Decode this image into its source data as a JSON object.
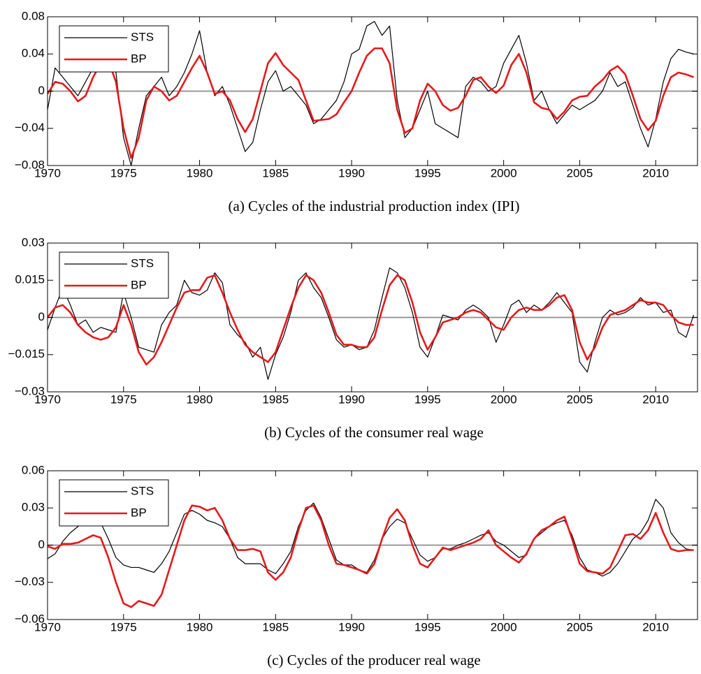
{
  "chart_data": [
    {
      "type": "line",
      "caption": "(a) Cycles of the industrial production index (IPI)",
      "xlim": [
        1970,
        2012.75
      ],
      "xticks": [
        1970,
        1975,
        1980,
        1985,
        1990,
        1995,
        2000,
        2005,
        2010
      ],
      "ylim": [
        -0.08,
        0.08
      ],
      "yticks": [
        {
          "value": -0.08,
          "label": "−0.08"
        },
        {
          "value": -0.04,
          "label": "−0.04"
        },
        0,
        0.04,
        0.08
      ],
      "legend": "upper left",
      "x": [
        1970,
        1970.5,
        1971,
        1971.5,
        1972,
        1972.5,
        1973,
        1973.5,
        1974,
        1974.5,
        1975,
        1975.5,
        1976,
        1976.5,
        1977,
        1977.5,
        1978,
        1978.5,
        1979,
        1979.5,
        1980,
        1980.5,
        1981,
        1981.5,
        1982,
        1982.5,
        1983,
        1983.5,
        1984,
        1984.5,
        1985,
        1985.5,
        1986,
        1986.5,
        1987,
        1987.5,
        1988,
        1988.5,
        1989,
        1989.5,
        1990,
        1990.5,
        1991,
        1991.5,
        1992,
        1992.5,
        1993,
        1993.5,
        1994,
        1994.5,
        1995,
        1995.5,
        1996,
        1996.5,
        1997,
        1997.5,
        1998,
        1998.5,
        1999,
        1999.5,
        2000,
        2000.5,
        2001,
        2001.5,
        2002,
        2002.5,
        2003,
        2003.5,
        2004,
        2004.5,
        2005,
        2005.5,
        2006,
        2006.5,
        2007,
        2007.5,
        2008,
        2008.5,
        2009,
        2009.5,
        2010,
        2010.5,
        2011,
        2011.5,
        2012,
        2012.5
      ],
      "series": [
        {
          "name": "STS",
          "color": "#000000",
          "values": [
            -0.02,
            0.025,
            0.015,
            0.005,
            -0.005,
            0.01,
            0.025,
            0.04,
            0.03,
            0.02,
            -0.05,
            -0.08,
            -0.04,
            -0.005,
            0.005,
            0.015,
            -0.005,
            0.005,
            0.02,
            0.04,
            0.065,
            0.02,
            -0.005,
            0.005,
            -0.015,
            -0.04,
            -0.065,
            -0.055,
            -0.02,
            0.01,
            0.022,
            0.0,
            0.005,
            -0.005,
            -0.015,
            -0.035,
            -0.03,
            -0.02,
            -0.01,
            0.01,
            0.04,
            0.045,
            0.07,
            0.075,
            0.06,
            0.07,
            -0.01,
            -0.05,
            -0.04,
            -0.02,
            0.0,
            -0.035,
            -0.04,
            -0.045,
            -0.05,
            0.005,
            0.015,
            0.01,
            0.0,
            0.005,
            0.03,
            0.045,
            0.06,
            0.03,
            -0.01,
            0.0,
            -0.02,
            -0.035,
            -0.025,
            -0.015,
            -0.02,
            -0.015,
            -0.01,
            0.0,
            0.02,
            0.005,
            0.01,
            -0.015,
            -0.04,
            -0.06,
            -0.03,
            0.01,
            0.035,
            0.045,
            0.042,
            0.04
          ]
        },
        {
          "name": "BP",
          "color": "#e41a1c",
          "values": [
            -0.003,
            0.01,
            0.008,
            0.0,
            -0.011,
            -0.005,
            0.015,
            0.03,
            0.033,
            0.01,
            -0.04,
            -0.072,
            -0.05,
            -0.01,
            0.005,
            0.0,
            -0.01,
            -0.005,
            0.01,
            0.025,
            0.038,
            0.02,
            -0.003,
            0.0,
            -0.01,
            -0.03,
            -0.044,
            -0.03,
            0.0,
            0.03,
            0.041,
            0.028,
            0.02,
            0.012,
            -0.01,
            -0.032,
            -0.031,
            -0.03,
            -0.025,
            -0.012,
            0.0,
            0.02,
            0.038,
            0.046,
            0.046,
            0.03,
            -0.02,
            -0.045,
            -0.04,
            -0.01,
            0.008,
            0.0,
            -0.015,
            -0.021,
            -0.018,
            -0.005,
            0.012,
            0.015,
            0.005,
            -0.002,
            0.006,
            0.028,
            0.04,
            0.02,
            -0.012,
            -0.018,
            -0.02,
            -0.03,
            -0.022,
            -0.01,
            -0.006,
            -0.005,
            0.005,
            0.012,
            0.022,
            0.027,
            0.018,
            -0.005,
            -0.03,
            -0.042,
            -0.032,
            -0.005,
            0.015,
            0.02,
            0.018,
            0.015
          ]
        }
      ]
    },
    {
      "type": "line",
      "caption": "(b) Cycles of the consumer real wage",
      "xlim": [
        1970,
        2012.75
      ],
      "xticks": [
        1970,
        1975,
        1980,
        1985,
        1990,
        1995,
        2000,
        2005,
        2010
      ],
      "ylim": [
        -0.03,
        0.03
      ],
      "yticks": [
        {
          "value": -0.03,
          "label": "−0.03"
        },
        {
          "value": -0.015,
          "label": "−0.015"
        },
        0,
        0.015,
        0.03
      ],
      "legend": "upper left",
      "x": [
        1970,
        1970.5,
        1971,
        1971.5,
        1972,
        1972.5,
        1973,
        1973.5,
        1974,
        1974.5,
        1975,
        1975.5,
        1976,
        1976.5,
        1977,
        1977.5,
        1978,
        1978.5,
        1979,
        1979.5,
        1980,
        1980.5,
        1981,
        1981.5,
        1982,
        1982.5,
        1983,
        1983.5,
        1984,
        1984.5,
        1985,
        1985.5,
        1986,
        1986.5,
        1987,
        1987.5,
        1988,
        1988.5,
        1989,
        1989.5,
        1990,
        1990.5,
        1991,
        1991.5,
        1992,
        1992.5,
        1993,
        1993.5,
        1994,
        1994.5,
        1995,
        1995.5,
        1996,
        1996.5,
        1997,
        1997.5,
        1998,
        1998.5,
        1999,
        1999.5,
        2000,
        2000.5,
        2001,
        2001.5,
        2002,
        2002.5,
        2003,
        2003.5,
        2004,
        2004.5,
        2005,
        2005.5,
        2006,
        2006.5,
        2007,
        2007.5,
        2008,
        2008.5,
        2009,
        2009.5,
        2010,
        2010.5,
        2011,
        2011.5,
        2012,
        2012.5
      ],
      "series": [
        {
          "name": "STS",
          "color": "#000000",
          "values": [
            -0.005,
            0.004,
            0.012,
            0.005,
            -0.003,
            -0.001,
            -0.006,
            -0.004,
            -0.005,
            -0.006,
            0.01,
            0.0,
            -0.012,
            -0.013,
            -0.014,
            -0.003,
            0.002,
            0.005,
            0.015,
            0.01,
            0.009,
            0.011,
            0.018,
            0.014,
            -0.003,
            -0.007,
            -0.01,
            -0.016,
            -0.012,
            -0.025,
            -0.015,
            -0.008,
            0.002,
            0.015,
            0.018,
            0.012,
            0.008,
            0.0,
            -0.009,
            -0.012,
            -0.011,
            -0.013,
            -0.012,
            -0.005,
            0.008,
            0.02,
            0.018,
            0.012,
            0.002,
            -0.012,
            -0.016,
            -0.008,
            0.001,
            0.0,
            -0.001,
            0.003,
            0.005,
            0.003,
            0.0,
            -0.01,
            -0.003,
            0.005,
            0.007,
            0.002,
            0.005,
            0.003,
            0.006,
            0.01,
            0.006,
            0.002,
            -0.018,
            -0.022,
            -0.01,
            0.0,
            0.003,
            0.001,
            0.002,
            0.004,
            0.008,
            0.005,
            0.006,
            0.002,
            0.003,
            -0.006,
            -0.008,
            0.001
          ]
        },
        {
          "name": "BP",
          "color": "#e41a1c",
          "values": [
            0.0,
            0.004,
            0.005,
            0.002,
            -0.003,
            -0.006,
            -0.008,
            -0.009,
            -0.008,
            -0.004,
            0.005,
            -0.003,
            -0.014,
            -0.019,
            -0.016,
            -0.01,
            -0.003,
            0.004,
            0.01,
            0.011,
            0.011,
            0.016,
            0.017,
            0.01,
            0.002,
            -0.005,
            -0.011,
            -0.014,
            -0.016,
            -0.018,
            -0.014,
            -0.005,
            0.004,
            0.012,
            0.017,
            0.015,
            0.01,
            0.002,
            -0.007,
            -0.011,
            -0.011,
            -0.012,
            -0.012,
            -0.008,
            0.003,
            0.013,
            0.017,
            0.015,
            0.006,
            -0.006,
            -0.013,
            -0.008,
            -0.002,
            -0.001,
            0.0,
            0.002,
            0.003,
            0.002,
            -0.001,
            -0.004,
            -0.005,
            0.0,
            0.003,
            0.004,
            0.003,
            0.003,
            0.005,
            0.008,
            0.009,
            0.003,
            -0.01,
            -0.017,
            -0.012,
            -0.004,
            0.001,
            0.002,
            0.003,
            0.005,
            0.007,
            0.006,
            0.006,
            0.005,
            0.001,
            -0.002,
            -0.003,
            -0.003
          ]
        }
      ]
    },
    {
      "type": "line",
      "caption": "(c) Cycles of the producer real wage",
      "xlim": [
        1970,
        2012.75
      ],
      "xticks": [
        1970,
        1975,
        1980,
        1985,
        1990,
        1995,
        2000,
        2005,
        2010
      ],
      "ylim": [
        -0.06,
        0.06
      ],
      "yticks": [
        {
          "value": -0.06,
          "label": "−0.06"
        },
        {
          "value": -0.03,
          "label": "−0.03"
        },
        0,
        0.03,
        0.06
      ],
      "legend": "upper left",
      "x": [
        1970,
        1970.5,
        1971,
        1971.5,
        1972,
        1972.5,
        1973,
        1973.5,
        1974,
        1974.5,
        1975,
        1975.5,
        1976,
        1976.5,
        1977,
        1977.5,
        1978,
        1978.5,
        1979,
        1979.5,
        1980,
        1980.5,
        1981,
        1981.5,
        1982,
        1982.5,
        1983,
        1983.5,
        1984,
        1984.5,
        1985,
        1985.5,
        1986,
        1986.5,
        1987,
        1987.5,
        1988,
        1988.5,
        1989,
        1989.5,
        1990,
        1990.5,
        1991,
        1991.5,
        1992,
        1992.5,
        1993,
        1993.5,
        1994,
        1994.5,
        1995,
        1995.5,
        1996,
        1996.5,
        1997,
        1997.5,
        1998,
        1998.5,
        1999,
        1999.5,
        2000,
        2000.5,
        2001,
        2001.5,
        2002,
        2002.5,
        2003,
        2003.5,
        2004,
        2004.5,
        2005,
        2005.5,
        2006,
        2006.5,
        2007,
        2007.5,
        2008,
        2008.5,
        2009,
        2009.5,
        2010,
        2010.5,
        2011,
        2011.5,
        2012,
        2012.5
      ],
      "series": [
        {
          "name": "STS",
          "color": "#000000",
          "values": [
            -0.011,
            -0.007,
            0.003,
            0.01,
            0.015,
            0.02,
            0.02,
            0.018,
            0.005,
            -0.01,
            -0.016,
            -0.018,
            -0.018,
            -0.02,
            -0.022,
            -0.015,
            -0.005,
            0.01,
            0.025,
            0.028,
            0.025,
            0.02,
            0.018,
            0.015,
            0.005,
            -0.01,
            -0.015,
            -0.015,
            -0.015,
            -0.02,
            -0.023,
            -0.015,
            -0.005,
            0.015,
            0.028,
            0.034,
            0.022,
            0.005,
            -0.012,
            -0.016,
            -0.016,
            -0.02,
            -0.022,
            -0.012,
            0.005,
            0.015,
            0.021,
            0.018,
            0.005,
            -0.008,
            -0.013,
            -0.01,
            -0.003,
            -0.003,
            0.0,
            0.002,
            0.005,
            0.008,
            0.01,
            0.003,
            0.0,
            -0.005,
            -0.01,
            -0.008,
            0.005,
            0.01,
            0.015,
            0.018,
            0.02,
            0.008,
            -0.01,
            -0.02,
            -0.022,
            -0.025,
            -0.022,
            -0.015,
            -0.005,
            0.005,
            0.01,
            0.02,
            0.037,
            0.03,
            0.01,
            0.002,
            -0.003,
            -0.004
          ]
        },
        {
          "name": "BP",
          "color": "#e41a1c",
          "values": [
            -0.001,
            -0.003,
            0.001,
            0.001,
            0.002,
            0.005,
            0.008,
            0.006,
            -0.01,
            -0.03,
            -0.047,
            -0.05,
            -0.045,
            -0.047,
            -0.049,
            -0.04,
            -0.02,
            0.0,
            0.02,
            0.032,
            0.031,
            0.028,
            0.03,
            0.02,
            0.005,
            -0.004,
            -0.004,
            -0.003,
            -0.005,
            -0.022,
            -0.028,
            -0.022,
            -0.01,
            0.012,
            0.03,
            0.032,
            0.02,
            0.0,
            -0.015,
            -0.016,
            -0.018,
            -0.02,
            -0.023,
            -0.015,
            0.005,
            0.022,
            0.029,
            0.02,
            0.0,
            -0.015,
            -0.018,
            -0.01,
            -0.002,
            -0.004,
            -0.002,
            0.0,
            0.002,
            0.005,
            0.012,
            0.0,
            -0.005,
            -0.01,
            -0.014,
            -0.007,
            0.005,
            0.012,
            0.015,
            0.02,
            0.023,
            0.005,
            -0.015,
            -0.021,
            -0.022,
            -0.023,
            -0.018,
            -0.005,
            0.008,
            0.009,
            0.005,
            0.012,
            0.026,
            0.01,
            -0.003,
            -0.005,
            -0.004,
            -0.004
          ]
        }
      ]
    }
  ]
}
